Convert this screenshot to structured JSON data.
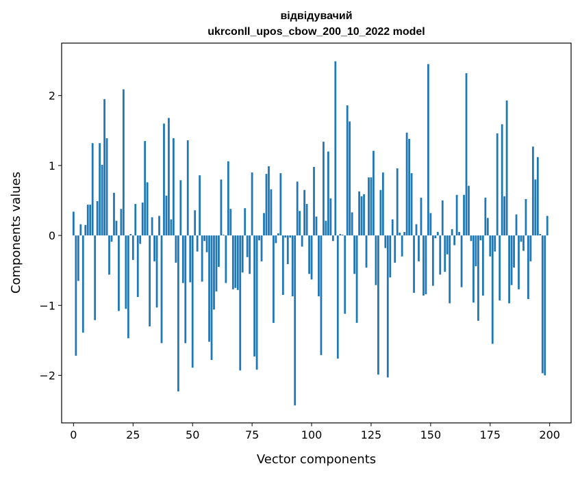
{
  "chart_data": {
    "type": "bar",
    "title": "відвідувачий",
    "subtitle": "ukrconll_upos_cbow_200_10_2022 model",
    "xlabel": "Vector components",
    "ylabel": "Components values",
    "xlim": [
      -5,
      209
    ],
    "ylim": [
      -2.68,
      2.75
    ],
    "xticks": [
      0,
      25,
      50,
      75,
      100,
      125,
      150,
      175,
      200
    ],
    "xtick_labels": [
      "0",
      "25",
      "50",
      "75",
      "100",
      "125",
      "150",
      "175",
      "200"
    ],
    "yticks": [
      -2,
      -1,
      0,
      1,
      2
    ],
    "ytick_labels": [
      "−2",
      "−1",
      "0",
      "1",
      "2"
    ],
    "grid": false,
    "legend": "none",
    "bar_color": "#1f77b4",
    "x": [
      0,
      1,
      2,
      3,
      4,
      5,
      6,
      7,
      8,
      9,
      10,
      11,
      12,
      13,
      14,
      15,
      16,
      17,
      18,
      19,
      20,
      21,
      22,
      23,
      24,
      25,
      26,
      27,
      28,
      29,
      30,
      31,
      32,
      33,
      34,
      35,
      36,
      37,
      38,
      39,
      40,
      41,
      42,
      43,
      44,
      45,
      46,
      47,
      48,
      49,
      50,
      51,
      52,
      53,
      54,
      55,
      56,
      57,
      58,
      59,
      60,
      61,
      62,
      63,
      64,
      65,
      66,
      67,
      68,
      69,
      70,
      71,
      72,
      73,
      74,
      75,
      76,
      77,
      78,
      79,
      80,
      81,
      82,
      83,
      84,
      85,
      86,
      87,
      88,
      89,
      90,
      91,
      92,
      93,
      94,
      95,
      96,
      97,
      98,
      99,
      100,
      101,
      102,
      103,
      104,
      105,
      106,
      107,
      108,
      109,
      110,
      111,
      112,
      113,
      114,
      115,
      116,
      117,
      118,
      119,
      120,
      121,
      122,
      123,
      124,
      125,
      126,
      127,
      128,
      129,
      130,
      131,
      132,
      133,
      134,
      135,
      136,
      137,
      138,
      139,
      140,
      141,
      142,
      143,
      144,
      145,
      146,
      147,
      148,
      149,
      150,
      151,
      152,
      153,
      154,
      155,
      156,
      157,
      158,
      159,
      160,
      161,
      162,
      163,
      164,
      165,
      166,
      167,
      168,
      169,
      170,
      171,
      172,
      173,
      174,
      175,
      176,
      177,
      178,
      179,
      180,
      181,
      182,
      183,
      184,
      185,
      186,
      187,
      188,
      189,
      190,
      191,
      192,
      193,
      194,
      195,
      196,
      197,
      198,
      199
    ],
    "values": [
      0.34,
      -1.72,
      -0.65,
      0.16,
      -1.39,
      0.15,
      0.44,
      0.44,
      1.32,
      -1.21,
      0.49,
      1.32,
      1.01,
      1.95,
      1.39,
      -0.56,
      -0.09,
      0.61,
      0.21,
      -1.08,
      0.38,
      2.09,
      -1.05,
      -1.47,
      0.02,
      -0.35,
      0.45,
      -0.88,
      -0.12,
      0.47,
      1.35,
      0.76,
      -1.3,
      0.26,
      -0.37,
      -1.03,
      0.28,
      -1.54,
      1.6,
      0.57,
      1.68,
      0.23,
      1.39,
      -0.39,
      -2.23,
      0.79,
      -0.68,
      -1.54,
      1.36,
      -0.67,
      -1.89,
      0.36,
      -0.23,
      0.86,
      -0.66,
      -0.08,
      -0.24,
      -1.52,
      -1.78,
      -1.06,
      -0.8,
      -0.45,
      0.8,
      0.01,
      -0.68,
      1.06,
      0.38,
      -0.77,
      -0.75,
      -0.78,
      -1.93,
      -0.53,
      0.39,
      -0.31,
      -0.55,
      0.9,
      -1.73,
      -1.92,
      -0.07,
      -0.37,
      0.32,
      0.88,
      0.99,
      0.66,
      -1.25,
      -0.11,
      0.03,
      0.89,
      -0.85,
      -0.03,
      -0.41,
      -0.03,
      -0.87,
      -2.43,
      0.77,
      0.35,
      -0.16,
      0.65,
      0.45,
      -0.55,
      -0.63,
      0.98,
      0.27,
      -0.87,
      -1.71,
      1.34,
      0.21,
      1.2,
      0.53,
      -0.08,
      2.49,
      -1.76,
      0.02,
      0.01,
      -1.12,
      1.86,
      1.63,
      0.33,
      -0.55,
      -1.25,
      0.63,
      0.56,
      0.59,
      -0.46,
      0.83,
      0.83,
      1.21,
      -0.71,
      -1.99,
      0.65,
      0.9,
      -0.18,
      -2.03,
      -0.6,
      0.23,
      -0.39,
      0.96,
      0.04,
      -0.3,
      0.05,
      1.47,
      1.38,
      0.89,
      -0.82,
      0.16,
      -0.37,
      0.54,
      -0.86,
      -0.84,
      2.45,
      0.32,
      -0.72,
      -0.04,
      0.05,
      -0.56,
      0.5,
      -0.52,
      -0.27,
      -0.97,
      0.09,
      -0.14,
      0.58,
      0.05,
      -0.74,
      0.58,
      2.32,
      0.71,
      -0.08,
      -0.96,
      -0.44,
      -1.22,
      -0.07,
      -0.86,
      0.54,
      0.25,
      -0.3,
      -1.55,
      -0.23,
      1.46,
      -0.93,
      1.59,
      0.56,
      1.93,
      -0.97,
      -0.71,
      -0.46,
      0.3,
      -0.77,
      -0.09,
      -0.22,
      0.52,
      -0.91,
      -0.37,
      1.27,
      0.8,
      1.12,
      0.02,
      -1.97,
      -2.0,
      0.28
    ]
  }
}
